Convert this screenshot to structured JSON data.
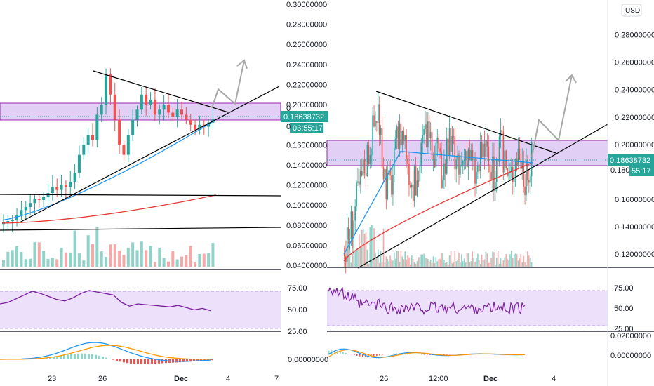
{
  "colors": {
    "bull": "#26a69a",
    "bear": "#ef5350",
    "bull_vol": "#8fd3c9",
    "bear_vol": "#f5a9a8",
    "zone_fill": "#e1cff5",
    "zone_edge": "#9c27b0",
    "ma_blue": "#2196f3",
    "ma_red": "#e53935",
    "rsi_line": "#7b1fa2",
    "rsi_band": "#ede0fb",
    "macd_line": "#2196f3",
    "signal_line": "#ff9800",
    "price_tag": "#26a69a",
    "trend_line": "#000000",
    "arrow": "#a8a8a8",
    "axis_text": "#131722"
  },
  "chart_data": [
    {
      "type": "candlestick",
      "title": "",
      "currency_label": "",
      "price_ticks": [
        "0.30000000",
        "0.28000000",
        "0.26000000",
        "0.24000000",
        "0.22000000",
        "0.20000000",
        "0.16000000",
        "0.14000000",
        "0.12000000",
        "0.10000000",
        "0.08000000",
        "0.06000000",
        "0.04000000"
      ],
      "price_range": [
        0.04,
        0.3
      ],
      "last_price": "0.18638732",
      "countdown": "03:55:17",
      "partial_label": "0",
      "partial_label2": "0",
      "rsi_ticks": [
        "75.00",
        "50.00",
        "25.00"
      ],
      "macd_ticks": [
        "0.00000000"
      ],
      "x_ticks": [
        "23",
        "26",
        "Dec",
        "4",
        "7"
      ],
      "zone": [
        0.172,
        0.19
      ],
      "grid": false,
      "ohlc_close": [
        0.083,
        0.084,
        0.085,
        0.09,
        0.095,
        0.098,
        0.102,
        0.106,
        0.105,
        0.108,
        0.112,
        0.118,
        0.115,
        0.12,
        0.118,
        0.123,
        0.132,
        0.15,
        0.16,
        0.17,
        0.165,
        0.19,
        0.2,
        0.23,
        0.21,
        0.185,
        0.16,
        0.15,
        0.17,
        0.185,
        0.195,
        0.21,
        0.2,
        0.205,
        0.19,
        0.195,
        0.2,
        0.192,
        0.188,
        0.195,
        0.19,
        0.185,
        0.18,
        0.175,
        0.18,
        0.178,
        0.182,
        0.186
      ],
      "rsi": [
        58,
        60,
        65,
        70,
        75,
        72,
        68,
        64,
        62,
        66,
        72,
        76,
        74,
        72,
        70,
        60,
        55,
        58,
        57,
        56,
        55,
        54,
        56,
        53,
        50,
        52,
        49
      ],
      "ma_blue_end": 0.186,
      "ma_red_end": 0.11
    },
    {
      "type": "candlestick",
      "title": "",
      "currency_label": "USD",
      "price_ticks": [
        "0.28000000",
        "0.26000000",
        "0.24000000",
        "0.22000000",
        "0.20000000",
        "0.16000000",
        "0.14000000",
        "0.12000000"
      ],
      "price_range": [
        0.115,
        0.29
      ],
      "last_price": "0.18638732",
      "countdown": "55:17",
      "partial_label": "0.180",
      "rsi_ticks": [
        "75.00",
        "50.00",
        "25.00"
      ],
      "macd_ticks": [
        "0.02000000",
        "0.00000000"
      ],
      "x_ticks": [
        "26",
        "12:00",
        "Dec",
        "4"
      ],
      "zone": [
        0.178,
        0.2
      ],
      "grid": false,
      "rsi_range": [
        25,
        75
      ],
      "ma_blue_end": 0.186,
      "ma_red_end": 0.186
    }
  ]
}
